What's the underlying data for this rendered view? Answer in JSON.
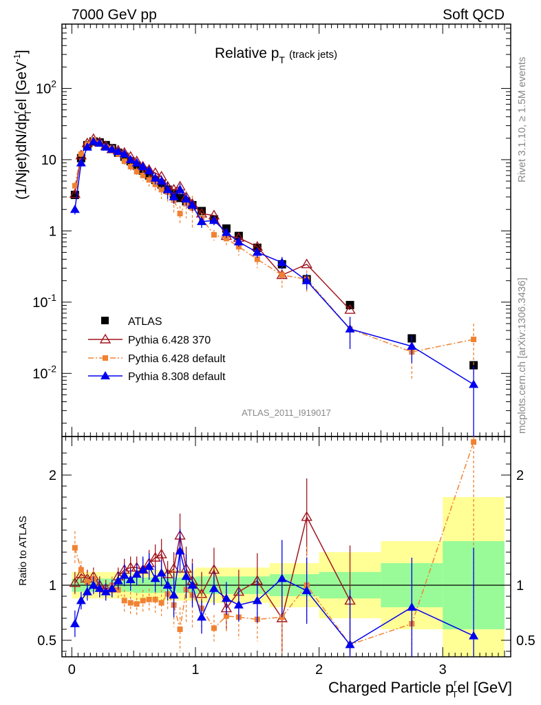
{
  "header": {
    "left": "7000 GeV pp",
    "right": "Soft QCD"
  },
  "title": {
    "main": "Relative p",
    "sub": "T",
    "extra": "(track jets)"
  },
  "side_labels": {
    "rivet": "Rivet 3.1.10, ≥ 1.5M events",
    "mcplots": "mcplots.cern.ch [arXiv:1306.3436]"
  },
  "watermark": "ATLAS_2011_I919017",
  "colors": {
    "atlas": "#000000",
    "py6_370": "#a0141e",
    "py6_def": "#f08232",
    "py8": "#0000ee",
    "band_inner": "#98fb98",
    "band_outer": "#ffff96"
  },
  "chart_data": [
    {
      "type": "scatter",
      "panel": "main",
      "ylabel": "(1/Njet)dN/dp^r_T el [GeV^-1]",
      "ylabel_parts": {
        "a": "(1/Njet)dN/dp",
        "b": "r",
        "c": "T",
        "d": "el [GeV",
        "e": "-1",
        "f": "]"
      },
      "xlim": [
        -0.08,
        3.55
      ],
      "ylim": [
        0.0013,
        800
      ],
      "yscale": "log",
      "ytick_labels": [
        {
          "v": 0.01,
          "base": "10",
          "exp": "-2"
        },
        {
          "v": 0.1,
          "base": "10",
          "exp": "-1"
        },
        {
          "v": 1,
          "base": "1",
          "exp": ""
        },
        {
          "v": 10,
          "base": "10",
          "exp": ""
        },
        {
          "v": 100,
          "base": "10",
          "exp": "2"
        }
      ],
      "legend_position": "bottom-left",
      "series": [
        {
          "name": "ATLAS",
          "style": "atlas",
          "x": [
            0.025,
            0.075,
            0.125,
            0.175,
            0.225,
            0.275,
            0.325,
            0.375,
            0.425,
            0.475,
            0.525,
            0.575,
            0.625,
            0.675,
            0.725,
            0.775,
            0.825,
            0.875,
            0.925,
            0.975,
            1.05,
            1.15,
            1.25,
            1.35,
            1.5,
            1.7,
            1.9,
            2.25,
            2.75,
            3.25
          ],
          "y": [
            3.2,
            10.5,
            16,
            18,
            17.5,
            16,
            14.5,
            12.5,
            11,
            9.5,
            8.2,
            7,
            6,
            5.2,
            4.5,
            3.8,
            3.3,
            2.9,
            2.6,
            2.3,
            1.9,
            1.45,
            1.08,
            0.85,
            0.58,
            0.34,
            0.21,
            0.091,
            0.031,
            0.013
          ]
        },
        {
          "name": "Pythia 6.428 370",
          "style": "py6_370",
          "x": [
            0.025,
            0.075,
            0.125,
            0.175,
            0.225,
            0.275,
            0.325,
            0.375,
            0.425,
            0.475,
            0.525,
            0.575,
            0.625,
            0.675,
            0.725,
            0.775,
            0.825,
            0.875,
            0.925,
            0.975,
            1.05,
            1.15,
            1.25,
            1.35,
            1.5,
            1.7,
            1.9,
            2.25
          ],
          "y": [
            3.3,
            11.5,
            17,
            19.5,
            17.5,
            15.5,
            14,
            13.5,
            12.5,
            11,
            9.5,
            8,
            7.2,
            6.5,
            5.8,
            4.2,
            3.8,
            4.2,
            3.0,
            2.4,
            1.75,
            1.65,
            0.85,
            0.8,
            0.6,
            0.24,
            0.34,
            0.078
          ]
        },
        {
          "name": "Pythia 6.428 default",
          "style": "py6_def",
          "x": [
            0.025,
            0.075,
            0.125,
            0.175,
            0.225,
            0.275,
            0.325,
            0.375,
            0.425,
            0.475,
            0.525,
            0.575,
            0.625,
            0.675,
            0.725,
            0.775,
            0.825,
            0.875,
            0.925,
            0.975,
            1.05,
            1.15,
            1.25,
            1.35,
            1.5,
            1.7,
            1.9,
            2.25,
            2.75,
            3.25
          ],
          "y": [
            4.3,
            12,
            16.5,
            19,
            17,
            15,
            14.5,
            12,
            9.5,
            8,
            6.8,
            6,
            5.2,
            4.5,
            3.8,
            3.5,
            2.7,
            1.75,
            2.5,
            2.1,
            1.5,
            0.88,
            0.78,
            0.6,
            0.4,
            0.24,
            0.21,
            0.042,
            0.02,
            0.03
          ],
          "yerr": [
            0.5,
            1,
            1,
            1,
            1,
            1,
            1,
            1,
            1,
            1,
            1,
            1,
            1,
            1,
            1,
            1,
            1,
            0.5,
            1,
            1,
            0.3,
            0.15,
            0.15,
            0.15,
            0.1,
            0.08,
            0.07,
            0.02,
            0.012,
            0.02
          ]
        },
        {
          "name": "Pythia 8.308 default",
          "style": "py8",
          "x": [
            0.025,
            0.075,
            0.125,
            0.175,
            0.225,
            0.275,
            0.325,
            0.375,
            0.425,
            0.475,
            0.525,
            0.575,
            0.625,
            0.675,
            0.725,
            0.775,
            0.825,
            0.875,
            0.925,
            0.975,
            1.05,
            1.15,
            1.25,
            1.35,
            1.5,
            1.7,
            1.9,
            2.25,
            2.75,
            3.25
          ],
          "y": [
            2.0,
            9,
            15,
            18,
            17,
            15,
            14,
            13,
            12,
            10,
            9,
            8,
            7,
            5.5,
            5,
            3.8,
            3.0,
            3.8,
            2.8,
            2.3,
            1.35,
            1.4,
            0.95,
            0.7,
            0.5,
            0.36,
            0.2,
            0.042,
            0.024,
            0.007
          ],
          "yerr": [
            0.3,
            1,
            1,
            1,
            1,
            1,
            1,
            1,
            1,
            1,
            1,
            1,
            1,
            1,
            1,
            1,
            0.6,
            0.8,
            0.6,
            0.4,
            0.25,
            0.2,
            0.15,
            0.1,
            0.08,
            0.07,
            0.05,
            0.02,
            0.01,
            0.006
          ]
        }
      ]
    },
    {
      "type": "scatter",
      "panel": "ratio",
      "xlabel": "Charged Particle p^r_T el [GeV]",
      "xlabel_parts": {
        "a": "Charged Particle p",
        "b": "r",
        "c": "T",
        "d": "el [GeV]"
      },
      "ylabel": "Ratio to ATLAS",
      "xlim": [
        -0.08,
        3.55
      ],
      "ylim": [
        0.35,
        2.35
      ],
      "ytick_labels": [
        0.5,
        1,
        2
      ],
      "xtick_labels": [
        0,
        1,
        2,
        3
      ],
      "bands": [
        {
          "x0": 0.0,
          "x1": 0.5,
          "inner": 0.06,
          "outer": 0.12
        },
        {
          "x0": 0.5,
          "x1": 1.0,
          "inner": 0.07,
          "outer": 0.14
        },
        {
          "x0": 1.0,
          "x1": 1.6,
          "inner": 0.08,
          "outer": 0.16
        },
        {
          "x0": 1.6,
          "x1": 2.0,
          "inner": 0.1,
          "outer": 0.2
        },
        {
          "x0": 2.0,
          "x1": 2.5,
          "inner": 0.12,
          "outer": 0.3
        },
        {
          "x0": 2.5,
          "x1": 3.0,
          "inner": 0.2,
          "outer": 0.4
        },
        {
          "x0": 3.0,
          "x1": 3.5,
          "inner": 0.4,
          "outer": 0.8
        }
      ],
      "series": [
        {
          "name": "Pythia 6.428 370",
          "style": "py6_370",
          "x": [
            0.025,
            0.075,
            0.125,
            0.175,
            0.225,
            0.275,
            0.325,
            0.375,
            0.425,
            0.475,
            0.525,
            0.575,
            0.625,
            0.675,
            0.725,
            0.775,
            0.825,
            0.875,
            0.925,
            0.975,
            1.05,
            1.15,
            1.25,
            1.35,
            1.5,
            1.7,
            1.9,
            2.25
          ],
          "y": [
            1.02,
            1.1,
            1.06,
            1.08,
            1.0,
            0.97,
            0.97,
            1.08,
            1.14,
            1.16,
            1.16,
            1.14,
            1.2,
            1.25,
            1.28,
            1.1,
            1.15,
            1.45,
            1.15,
            1.04,
            0.92,
            1.14,
            0.79,
            0.94,
            1.04,
            0.7,
            1.62,
            0.86
          ],
          "yerr": [
            0.1,
            0.08,
            0.08,
            0.08,
            0.08,
            0.08,
            0.08,
            0.08,
            0.1,
            0.1,
            0.1,
            0.1,
            0.12,
            0.12,
            0.14,
            0.12,
            0.15,
            0.2,
            0.2,
            0.2,
            0.2,
            0.2,
            0.2,
            0.2,
            0.25,
            0.3,
            0.35,
            0.5
          ]
        },
        {
          "name": "Pythia 6.428 default",
          "style": "py6_def",
          "x": [
            0.025,
            0.075,
            0.125,
            0.175,
            0.225,
            0.275,
            0.325,
            0.375,
            0.425,
            0.475,
            0.525,
            0.575,
            0.625,
            0.675,
            0.725,
            0.775,
            0.825,
            0.875,
            0.925,
            0.975,
            1.05,
            1.15,
            1.25,
            1.35,
            1.5,
            1.7,
            1.9,
            2.25,
            2.75,
            3.25
          ],
          "y": [
            1.34,
            1.14,
            1.03,
            1.06,
            0.97,
            0.94,
            1.0,
            0.96,
            0.86,
            0.84,
            0.83,
            0.86,
            0.87,
            0.87,
            0.84,
            0.92,
            0.82,
            0.6,
            0.96,
            0.91,
            0.79,
            0.61,
            0.72,
            0.71,
            0.69,
            0.71,
            1.0,
            0.46,
            0.65,
            2.3
          ],
          "yerr": [
            0.15,
            0.08,
            0.08,
            0.08,
            0.08,
            0.08,
            0.08,
            0.08,
            0.1,
            0.1,
            0.1,
            0.1,
            0.1,
            0.12,
            0.12,
            0.15,
            0.2,
            0.2,
            0.3,
            0.3,
            0.2,
            0.12,
            0.15,
            0.2,
            0.2,
            0.35,
            0.35,
            0.25,
            0.4,
            1.6
          ]
        },
        {
          "name": "Pythia 8.308 default",
          "style": "py8",
          "x": [
            0.025,
            0.075,
            0.125,
            0.175,
            0.225,
            0.275,
            0.325,
            0.375,
            0.425,
            0.475,
            0.525,
            0.575,
            0.625,
            0.675,
            0.725,
            0.775,
            0.825,
            0.875,
            0.925,
            0.975,
            1.05,
            1.15,
            1.25,
            1.35,
            1.5,
            1.7,
            1.9,
            2.25,
            2.75,
            3.25
          ],
          "y": [
            0.65,
            0.86,
            0.94,
            1.0,
            0.97,
            0.94,
            0.97,
            1.04,
            1.09,
            1.05,
            1.1,
            1.14,
            1.17,
            1.06,
            1.11,
            1.0,
            0.91,
            1.31,
            1.08,
            1.0,
            0.71,
            0.97,
            0.88,
            0.82,
            0.86,
            1.06,
            0.95,
            0.46,
            0.8,
            0.54
          ],
          "yerr": [
            0.12,
            0.08,
            0.08,
            0.08,
            0.08,
            0.08,
            0.08,
            0.08,
            0.1,
            0.1,
            0.1,
            0.12,
            0.12,
            0.12,
            0.12,
            0.14,
            0.2,
            0.2,
            0.2,
            0.2,
            0.15,
            0.15,
            0.15,
            0.15,
            0.2,
            0.35,
            0.3,
            0.5,
            0.45,
            0.8
          ]
        }
      ]
    }
  ]
}
